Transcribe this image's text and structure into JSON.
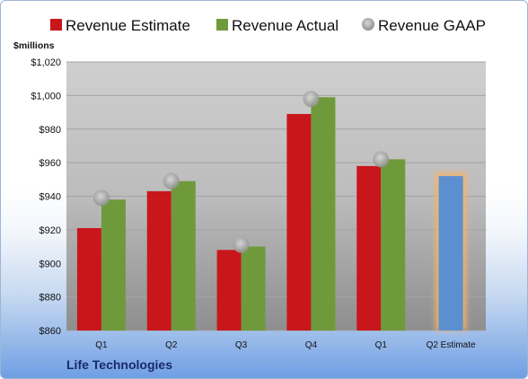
{
  "company_label": "Life Technologies",
  "colors": {
    "estimate": "#c8161b",
    "actual": "#6f9a3b",
    "gaap": "#b4b4b4",
    "forecast": "#5b8fd0",
    "forecast_glow": "#f4b36b"
  },
  "chart_data": {
    "type": "bar",
    "unit_label": "$millions",
    "legend_position": "top",
    "grid": true,
    "ylim": [
      860,
      1020
    ],
    "yticks": [
      "$860",
      "$880",
      "$900",
      "$920",
      "$940",
      "$960",
      "$980",
      "$1,000",
      "$1,020"
    ],
    "ytick_values": [
      860,
      880,
      900,
      920,
      940,
      960,
      980,
      1000,
      1020
    ],
    "categories": [
      "Q1",
      "Q2",
      "Q3",
      "Q4",
      "Q1",
      "Q2 Estimate"
    ],
    "series": [
      {
        "name": "Revenue Estimate",
        "kind": "bar",
        "values": [
          921,
          943,
          908,
          989,
          958,
          null
        ]
      },
      {
        "name": "Revenue Actual",
        "kind": "bar",
        "values": [
          938,
          949,
          910,
          999,
          962,
          null
        ]
      },
      {
        "name": "Revenue GAAP",
        "kind": "marker",
        "values": [
          939,
          949,
          911,
          998,
          962,
          null
        ]
      }
    ],
    "forecast": {
      "category": "Q2 Estimate",
      "value": 952
    }
  }
}
